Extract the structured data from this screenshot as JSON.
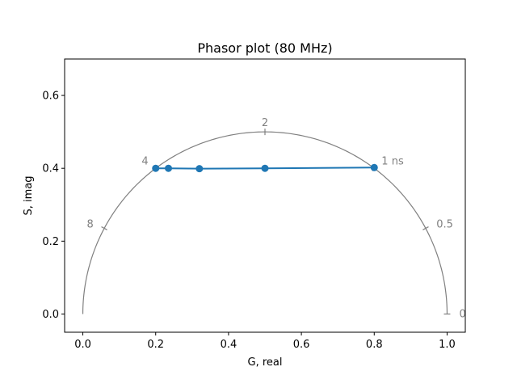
{
  "chart_data": {
    "type": "line",
    "title": "Phasor plot (80 MHz)",
    "xlabel": "G, real",
    "ylabel": "S, imag",
    "xlim": [
      -0.05,
      1.05
    ],
    "ylim": [
      -0.05,
      0.7
    ],
    "x_ticks": [
      {
        "value": 0.0,
        "label": "0.0"
      },
      {
        "value": 0.2,
        "label": "0.2"
      },
      {
        "value": 0.4,
        "label": "0.4"
      },
      {
        "value": 0.6,
        "label": "0.6"
      },
      {
        "value": 0.8,
        "label": "0.8"
      },
      {
        "value": 1.0,
        "label": "1.0"
      }
    ],
    "y_ticks": [
      {
        "value": 0.0,
        "label": "0.0"
      },
      {
        "value": 0.2,
        "label": "0.2"
      },
      {
        "value": 0.4,
        "label": "0.4"
      },
      {
        "value": 0.6,
        "label": "0.6"
      }
    ],
    "grid": false,
    "universal_circle": {
      "center": [
        0.5,
        0.0
      ],
      "radius": 0.5,
      "color": "#808080"
    },
    "lifetime_ticks": [
      {
        "label": "1 ns",
        "g": 0.8,
        "s": 0.4
      },
      {
        "label": "2",
        "g": 0.5,
        "s": 0.5
      },
      {
        "label": "4",
        "g": 0.2,
        "s": 0.4
      },
      {
        "label": "8",
        "g": 0.0588,
        "s": 0.2353
      },
      {
        "label": "0.5",
        "g": 0.9412,
        "s": 0.2353
      },
      {
        "label": "0",
        "g": 1.0,
        "s": 0.0
      }
    ],
    "series": [
      {
        "color": "#1f77b4",
        "x": [
          0.8,
          0.5,
          0.32,
          0.235,
          0.2
        ],
        "y": [
          0.402,
          0.4,
          0.399,
          0.4,
          0.4
        ]
      }
    ]
  }
}
